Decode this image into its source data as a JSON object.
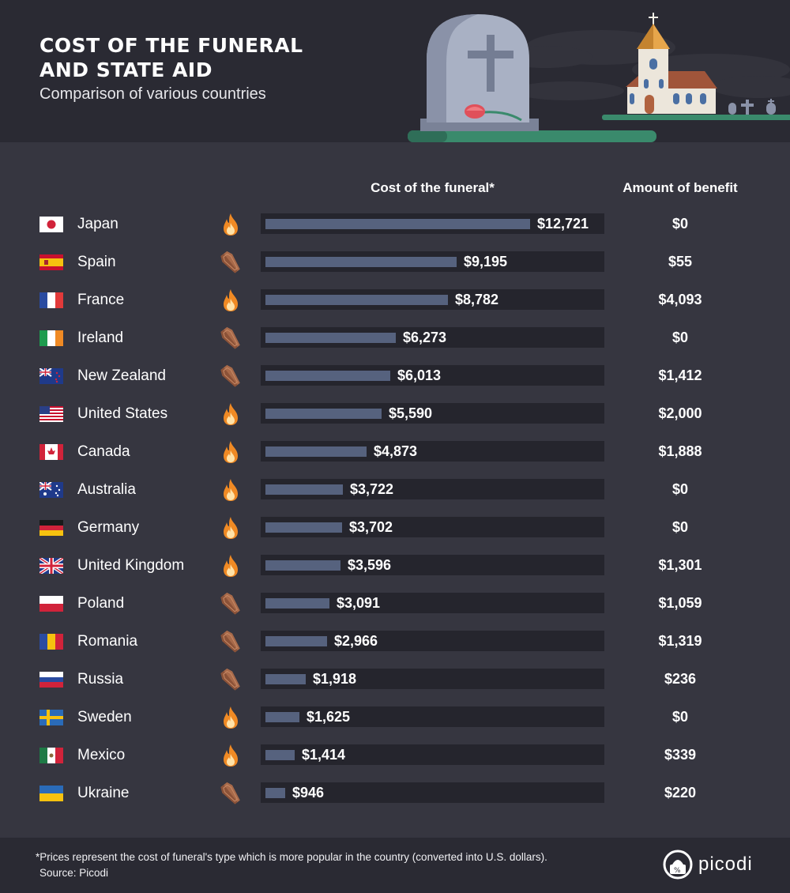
{
  "header": {
    "title": "COST OF THE FUNERAL AND STATE AID",
    "subtitle": "Comparison of various countries"
  },
  "columns": {
    "cost": "Cost of the funeral*",
    "benefit": "Amount of benefit"
  },
  "rows": [
    {
      "country": "Japan",
      "type": "cremation",
      "cost_label": "$12,721",
      "benefit_label": "$0"
    },
    {
      "country": "Spain",
      "type": "burial",
      "cost_label": "$9,195",
      "benefit_label": "$55"
    },
    {
      "country": "France",
      "type": "cremation",
      "cost_label": "$8,782",
      "benefit_label": "$4,093"
    },
    {
      "country": "Ireland",
      "type": "burial",
      "cost_label": "$6,273",
      "benefit_label": "$0"
    },
    {
      "country": "New Zealand",
      "type": "burial",
      "cost_label": "$6,013",
      "benefit_label": "$1,412"
    },
    {
      "country": "United States",
      "type": "cremation",
      "cost_label": "$5,590",
      "benefit_label": "$2,000"
    },
    {
      "country": "Canada",
      "type": "cremation",
      "cost_label": "$4,873",
      "benefit_label": "$1,888"
    },
    {
      "country": "Australia",
      "type": "cremation",
      "cost_label": "$3,722",
      "benefit_label": "$0"
    },
    {
      "country": "Germany",
      "type": "cremation",
      "cost_label": "$3,702",
      "benefit_label": "$0"
    },
    {
      "country": "United Kingdom",
      "type": "cremation",
      "cost_label": "$3,596",
      "benefit_label": "$1,301"
    },
    {
      "country": "Poland",
      "type": "burial",
      "cost_label": "$3,091",
      "benefit_label": "$1,059"
    },
    {
      "country": "Romania",
      "type": "burial",
      "cost_label": "$2,966",
      "benefit_label": "$1,319"
    },
    {
      "country": "Russia",
      "type": "burial",
      "cost_label": "$1,918",
      "benefit_label": "$236"
    },
    {
      "country": "Sweden",
      "type": "cremation",
      "cost_label": "$1,625",
      "benefit_label": "$0"
    },
    {
      "country": "Mexico",
      "type": "cremation",
      "cost_label": "$1,414",
      "benefit_label": "$339"
    },
    {
      "country": "Ukraine",
      "type": "burial",
      "cost_label": "$946",
      "benefit_label": "$220"
    }
  ],
  "chart_data": {
    "type": "bar",
    "title": "COST OF THE FUNERAL AND STATE AID",
    "subtitle": "Comparison of various countries",
    "categories": [
      "Japan",
      "Spain",
      "France",
      "Ireland",
      "New Zealand",
      "United States",
      "Canada",
      "Australia",
      "Germany",
      "United Kingdom",
      "Poland",
      "Romania",
      "Russia",
      "Sweden",
      "Mexico",
      "Ukraine"
    ],
    "series": [
      {
        "name": "Cost of the funeral*",
        "values": [
          12721,
          9195,
          8782,
          6273,
          6013,
          5590,
          4873,
          3722,
          3702,
          3596,
          3091,
          2966,
          1918,
          1625,
          1414,
          946
        ]
      },
      {
        "name": "Amount of benefit",
        "values": [
          0,
          55,
          4093,
          0,
          1412,
          2000,
          1888,
          0,
          0,
          1301,
          1059,
          1319,
          236,
          0,
          339,
          220
        ]
      }
    ],
    "xlim": [
      0,
      12721
    ],
    "orientation": "horizontal",
    "grid": false,
    "colors": {
      "bar": "#56627e",
      "track": "#25252d",
      "background": "#363640",
      "panel": "#2a2a33"
    }
  },
  "icons": {
    "cremation": "flame-icon",
    "burial": "coffin-icon"
  },
  "footer": {
    "note": "*Prices represent the cost of funeral's type which is more popular in the country (converted into U.S. dollars).",
    "source": "Source: Picodi",
    "brand": "picodi"
  }
}
